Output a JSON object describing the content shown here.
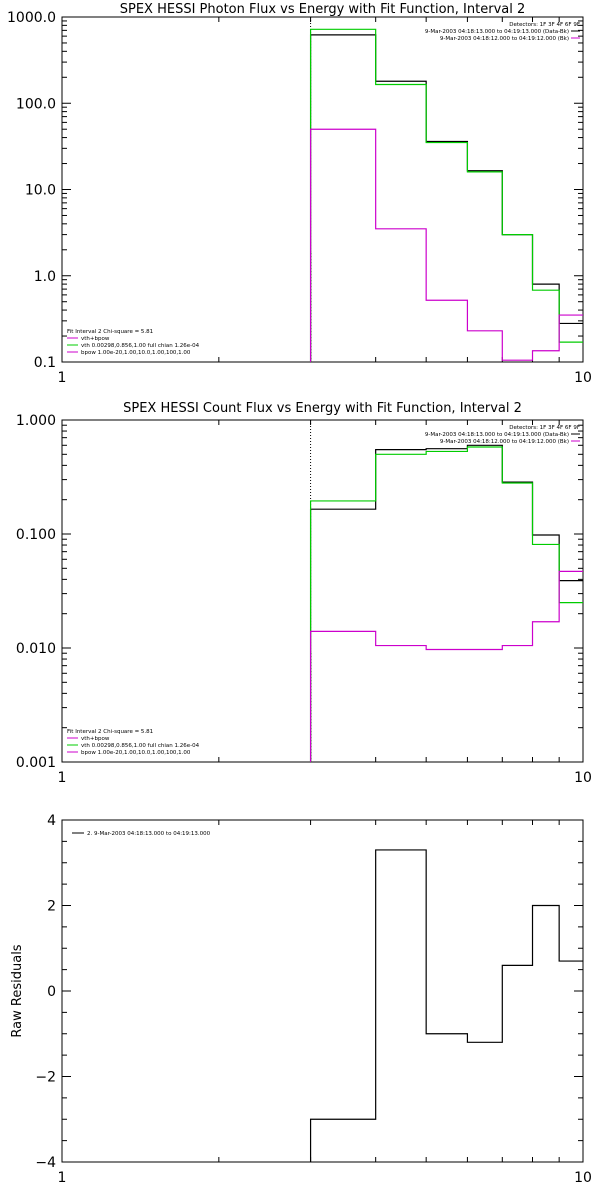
{
  "chart_data": [
    {
      "type": "line",
      "title": "SPEX HESSI Photon Flux vs Energy with Fit Function, Interval 2",
      "xscale": "log",
      "yscale": "log",
      "xlim": [
        1,
        10
      ],
      "ylim": [
        0.1,
        1000
      ],
      "x_ticks": [
        {
          "v": 1,
          "label": "1"
        },
        {
          "v": 10,
          "label": "10"
        }
      ],
      "y_ticks": [
        {
          "v": 0.1,
          "label": "0.1"
        },
        {
          "v": 1,
          "label": "1.0"
        },
        {
          "v": 10,
          "label": "10.0"
        },
        {
          "v": 100,
          "label": "100.0"
        },
        {
          "v": 1000,
          "label": "1000.0"
        }
      ],
      "xlabel": "",
      "ylabel": "",
      "vline": 3.0,
      "bin_edges": [
        3.0,
        4.0,
        5.0,
        6.0,
        7.0,
        8.0,
        9.0,
        10.0
      ],
      "series": [
        {
          "color": "#000000",
          "values": [
            620,
            180,
            36,
            16.5,
            3.0,
            0.8,
            0.28
          ]
        },
        {
          "color": "#00cc00",
          "values": [
            720,
            165,
            35,
            16,
            3.0,
            0.68,
            0.17
          ]
        },
        {
          "color": "#cc00cc",
          "values": [
            50,
            3.5,
            0.52,
            0.23,
            0.105,
            0.135,
            0.35
          ]
        }
      ],
      "legend_top": {
        "lines": [
          "Detectors: 1F 3F 4F 6F 9F",
          "9-Mar-2003 04:18:13.000 to 04:19:13.000 (Data-Bk)",
          "9-Mar-2003 04:18:12.000 to 04:19:12.000 (Bk)"
        ],
        "colors": [
          "",
          "#000000",
          "#cc00cc"
        ]
      },
      "legend_bottom": {
        "lines": [
          "Fit Interval  2   Chi-square = 5.81",
          "vth+bpow",
          "vth 0.00298,0.856,1.00  full chian 1.26e-04",
          "bpow 1.00e-20,1.00,10.0,1.00,100,1.00"
        ],
        "colors": [
          "",
          "#cc00cc",
          "#00cc00",
          "#cc00cc"
        ]
      }
    },
    {
      "type": "line",
      "title": "SPEX HESSI Count Flux vs Energy with Fit Function, Interval 2",
      "xscale": "log",
      "yscale": "log",
      "xlim": [
        1,
        10
      ],
      "ylim": [
        0.001,
        1
      ],
      "x_ticks": [
        {
          "v": 1,
          "label": "1"
        },
        {
          "v": 10,
          "label": "10"
        }
      ],
      "y_ticks": [
        {
          "v": 0.001,
          "label": "0.001"
        },
        {
          "v": 0.01,
          "label": "0.010"
        },
        {
          "v": 0.1,
          "label": "0.100"
        },
        {
          "v": 1,
          "label": "1.000"
        }
      ],
      "xlabel": "",
      "ylabel": "",
      "vline": 3.0,
      "bin_edges": [
        3.0,
        4.0,
        5.0,
        6.0,
        7.0,
        8.0,
        9.0,
        10.0
      ],
      "series": [
        {
          "color": "#000000",
          "values": [
            0.165,
            0.55,
            0.56,
            0.6,
            0.285,
            0.098,
            0.039
          ]
        },
        {
          "color": "#00cc00",
          "values": [
            0.195,
            0.5,
            0.53,
            0.58,
            0.28,
            0.081,
            0.025
          ]
        },
        {
          "color": "#cc00cc",
          "values": [
            0.014,
            0.0105,
            0.0097,
            0.0097,
            0.0105,
            0.017,
            0.047
          ]
        }
      ],
      "legend_top": {
        "lines": [
          "Detectors: 1F 3F 4F 6F 9F",
          "9-Mar-2003 04:18:13.000 to 04:19:13.000 (Data-Bk)",
          "9-Mar-2003 04:18:12.000 to 04:19:12.000 (Bk)"
        ],
        "colors": [
          "",
          "#000000",
          "#cc00cc"
        ]
      },
      "legend_bottom": {
        "lines": [
          "Fit Interval  2   Chi-square = 5.81",
          "vth+bpow",
          "vth 0.00298,0.856,1.00  full chian 1.26e-04",
          "bpow 1.00e-20,1.00,10.0,1.00,100,1.00"
        ],
        "colors": [
          "",
          "#cc00cc",
          "#00cc00",
          "#cc00cc"
        ]
      }
    },
    {
      "type": "line",
      "title": "",
      "xscale": "log",
      "yscale": "linear",
      "xlim": [
        1,
        10
      ],
      "ylim": [
        -4,
        4
      ],
      "x_ticks": [
        {
          "v": 1,
          "label": "1"
        },
        {
          "v": 10,
          "label": "10"
        }
      ],
      "y_ticks": [
        {
          "v": -4,
          "label": "−4"
        },
        {
          "v": -2,
          "label": "−2"
        },
        {
          "v": 0,
          "label": "0"
        },
        {
          "v": 2,
          "label": "2"
        },
        {
          "v": 4,
          "label": "4"
        }
      ],
      "xlabel": "",
      "ylabel": "Raw Residuals",
      "vline": null,
      "bin_edges": [
        3.0,
        4.0,
        5.0,
        6.0,
        7.0,
        8.0,
        9.0,
        10.0
      ],
      "series": [
        {
          "color": "#000000",
          "values": [
            -3.0,
            3.3,
            -1.0,
            -1.2,
            0.6,
            2.0,
            0.7
          ]
        }
      ],
      "legend_top": {
        "lines": [
          "2. 9-Mar-2003 04:18:13.000 to 04:19:13.000"
        ],
        "colors": [
          "#000000"
        ]
      },
      "legend_bottom": {
        "lines": [],
        "colors": []
      }
    }
  ]
}
